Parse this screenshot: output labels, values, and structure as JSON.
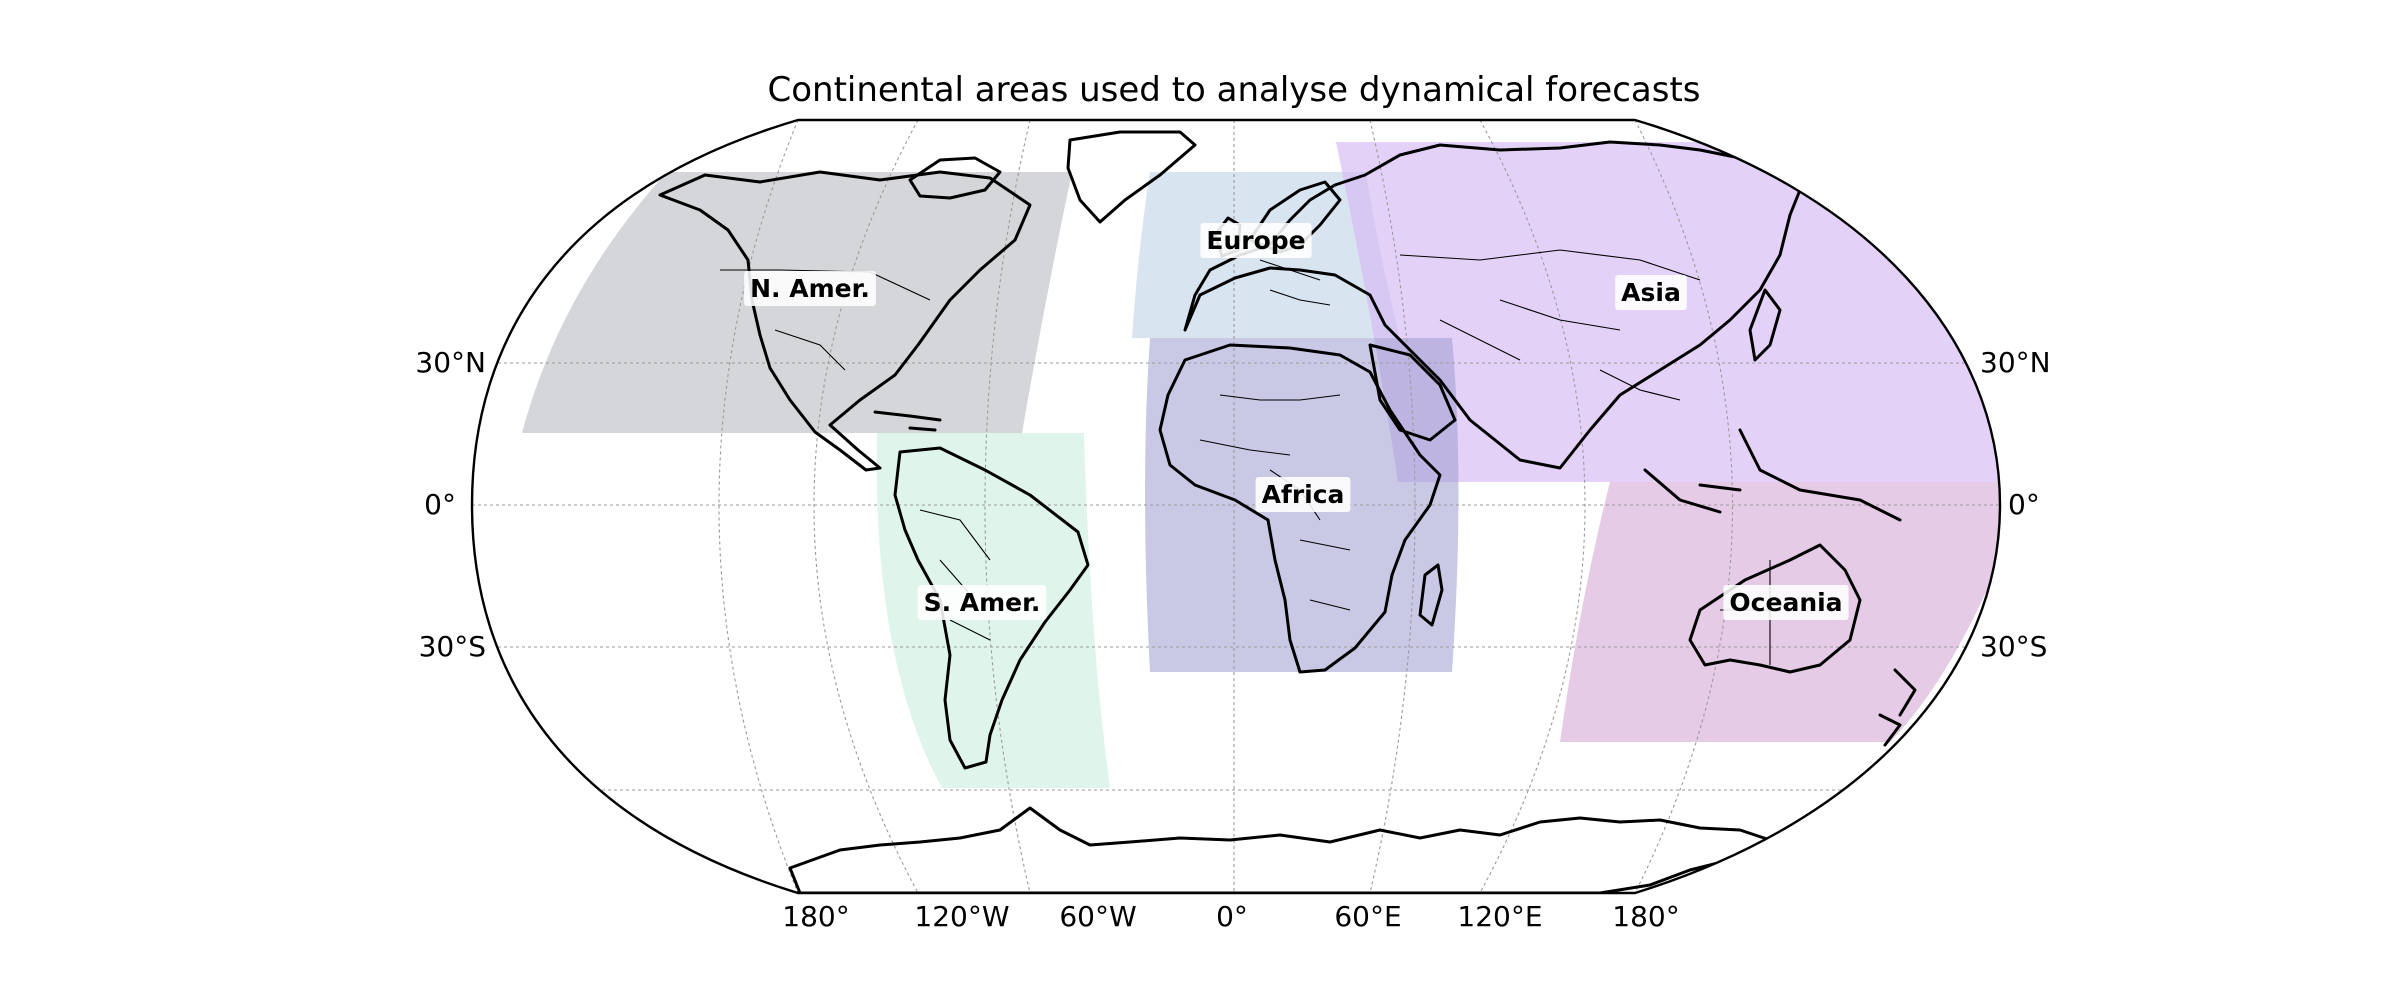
{
  "title": "Continental areas used to analyse dynamical forecasts",
  "lat_labels": {
    "left": [
      "30°N",
      "0°",
      "30°S"
    ],
    "right": [
      "30°N",
      "0°",
      "30°S"
    ]
  },
  "lon_labels": [
    "180°",
    "120°W",
    "60°W",
    "0°",
    "60°E",
    "120°E",
    "180°"
  ],
  "regions": [
    {
      "name": "N. Amer.",
      "color": "#c9cbce",
      "opacity": 0.78
    },
    {
      "name": "Europe",
      "color": "#c3d6e8",
      "opacity": 0.65
    },
    {
      "name": "Asia",
      "color": "#d6b8f4",
      "opacity": 0.65
    },
    {
      "name": "Africa",
      "color": "#9e9ccf",
      "opacity": 0.55
    },
    {
      "name": "S. Amer.",
      "color": "#c4ecdc",
      "opacity": 0.55
    },
    {
      "name": "Oceania",
      "color": "#cfa0d0",
      "opacity": 0.55
    }
  ]
}
